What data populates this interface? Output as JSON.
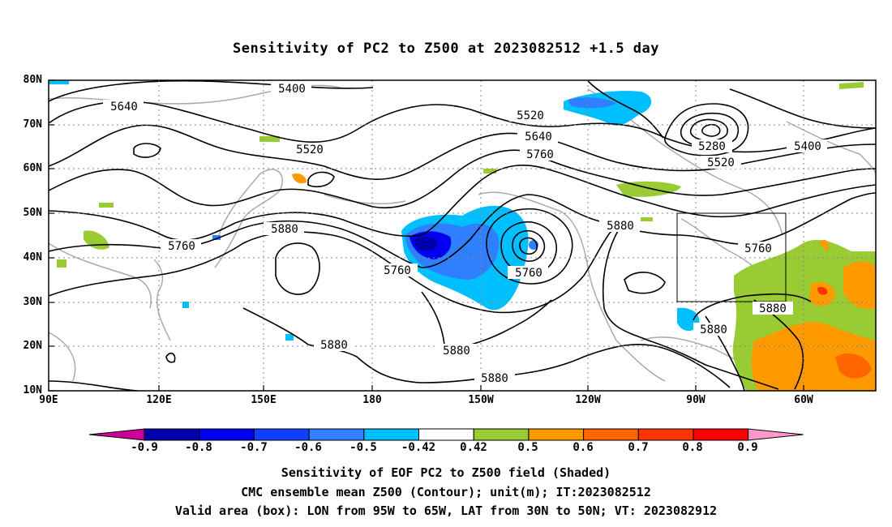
{
  "title": "Sensitivity of PC2 to Z500 at 2023082512 +1.5 day",
  "lat_labels": [
    "80N",
    "70N",
    "60N",
    "50N",
    "40N",
    "30N",
    "20N",
    "10N"
  ],
  "lon_labels": [
    "90E",
    "120E",
    "150E",
    "180",
    "150W",
    "120W",
    "90W",
    "60W"
  ],
  "contour_labels": [
    "5400",
    "5640",
    "5520",
    "5280",
    "5400",
    "5520",
    "5520",
    "5640",
    "5760",
    "5880",
    "5760",
    "5880",
    "5760",
    "5760",
    "5880",
    "5880",
    "5880",
    "5880",
    "5760",
    "5880"
  ],
  "colorbar": {
    "labels": [
      "-0.9",
      "-0.8",
      "-0.7",
      "-0.6",
      "-0.5",
      "-0.42",
      "0.42",
      "0.5",
      "0.6",
      "0.7",
      "0.8",
      "0.9"
    ],
    "colors": [
      "#0000aa",
      "#0000ee",
      "#1040ff",
      "#2f7fff",
      "#00bfff",
      "#ffffff",
      "#99cc33",
      "#ff9900",
      "#ff6600",
      "#ff3300",
      "#ff0000"
    ],
    "low_extend_color": "#cc0099",
    "high_extend_color": "#ff99cc"
  },
  "captions": {
    "line1": "Sensitivity of EOF PC2 to Z500 field (Shaded)",
    "line2": "CMC ensemble mean Z500 (Contour); unit(m); IT:2023082512",
    "line3": "Valid area (box): LON from 95W to 65W, LAT from 30N to 50N; VT: 2023082912"
  }
}
